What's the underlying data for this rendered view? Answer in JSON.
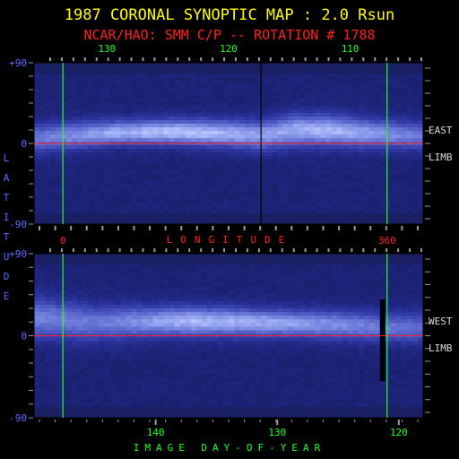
{
  "chart_data": {
    "type": "heatmap",
    "title": "1987 CORONAL SYNOPTIC MAP : 2.0 Rsun",
    "subtitle": "NCAR/HAO: SMM C/P -- ROTATION # 1788",
    "ylabel": "LATITUDE",
    "panels": [
      {
        "name": "east",
        "side_label": [
          "EAST",
          "LIMB"
        ],
        "x_axis": {
          "label": "IMAGE DAY-OF-YEAR",
          "ticks": [
            130,
            120,
            110
          ],
          "range": [
            136,
            104
          ]
        },
        "long_axis": {
          "label": "LONGITUDE",
          "ticks": [
            0,
            360
          ],
          "range": [
            -32,
            400
          ]
        },
        "y_axis": {
          "ticks": [
            "+90",
            "0",
            "-90"
          ],
          "range": [
            -90,
            90
          ]
        },
        "markers": {
          "green_lines_longitude": [
            0,
            360
          ],
          "red_line_latitude": 0,
          "gap_line_longitude": 220
        },
        "band": {
          "center_latitude": [
            [
              -32,
              5
            ],
            [
              0,
              8
            ],
            [
              60,
              12
            ],
            [
              120,
              13
            ],
            [
              180,
              11
            ],
            [
              220,
              9
            ],
            [
              260,
              15
            ],
            [
              300,
              14
            ],
            [
              360,
              10
            ],
            [
              400,
              8
            ]
          ],
          "width_deg": [
            [
              -32,
              22
            ],
            [
              60,
              18
            ],
            [
              180,
              20
            ],
            [
              260,
              24
            ],
            [
              400,
              20
            ]
          ],
          "intensity": [
            [
              -32,
              0.55
            ],
            [
              60,
              0.75
            ],
            [
              140,
              0.82
            ],
            [
              220,
              0.7
            ],
            [
              300,
              0.78
            ],
            [
              400,
              0.55
            ]
          ]
        }
      },
      {
        "name": "west",
        "side_label": [
          "WEST",
          "LIMB"
        ],
        "x_axis": {
          "label": "IMAGE DAY-OF-YEAR",
          "ticks": [
            140,
            130,
            120
          ],
          "range": [
            150,
            118
          ]
        },
        "y_axis": {
          "ticks": [
            "+90",
            "0",
            "-90"
          ],
          "range": [
            -90,
            90
          ]
        },
        "markers": {
          "green_lines_longitude": [
            0,
            360
          ],
          "red_line_latitude": 0,
          "gap_bar_longitude": 355
        },
        "band": {
          "center_latitude": [
            [
              -32,
              20
            ],
            [
              30,
              14
            ],
            [
              120,
              16
            ],
            [
              200,
              15
            ],
            [
              300,
              12
            ],
            [
              360,
              9
            ],
            [
              400,
              8
            ]
          ],
          "width_deg": [
            [
              -32,
              30
            ],
            [
              100,
              22
            ],
            [
              250,
              20
            ],
            [
              400,
              22
            ]
          ],
          "intensity": [
            [
              -32,
              0.6
            ],
            [
              40,
              0.55
            ],
            [
              140,
              0.78
            ],
            [
              240,
              0.72
            ],
            [
              330,
              0.6
            ],
            [
              400,
              0.5
            ]
          ]
        }
      }
    ],
    "colors": {
      "title": "#ffff00",
      "subtitle": "#ff2020",
      "axis_ticks_top": "#20ff20",
      "axis_ticks_left": "#5a6cff",
      "axis_ticks_long": "#ff2020",
      "limb_label": "#d8d8d8",
      "ylabel": "#5a6cff",
      "xlabel_bottom": "#20ff20",
      "xlabel_long": "#ff2020",
      "green_line": "#20ff20",
      "red_line": "#ff2020",
      "background": "#000000"
    }
  }
}
